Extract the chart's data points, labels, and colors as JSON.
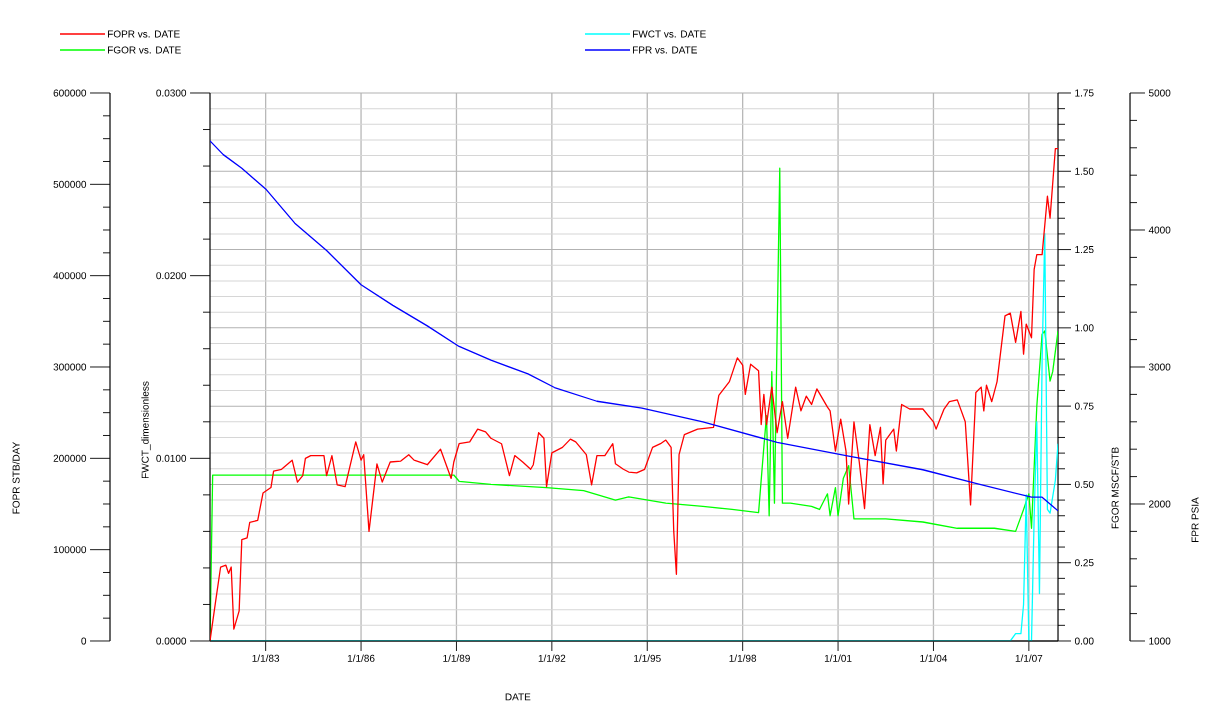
{
  "chart_data": [
    {
      "type": "line",
      "xlabel": "DATE",
      "ylabel": "FOPR  STB/DAY",
      "y2label": "FWCT_dimensionless",
      "y3label": "FGOR  MSCF/STB",
      "xlim": [
        "1981-04",
        "2007-12"
      ],
      "xticks": [
        {
          "value": "1983-01-01",
          "label": "1/1/83"
        },
        {
          "value": "1986-01-01",
          "label": "1/1/86"
        },
        {
          "value": "1989-01-01",
          "label": "1/1/89"
        },
        {
          "value": "1992-01-01",
          "label": "1/1/92"
        },
        {
          "value": "1995-01-01",
          "label": "1/1/95"
        },
        {
          "value": "1998-01-01",
          "label": "1/1/98"
        },
        {
          "value": "2001-01-01",
          "label": "1/1/01"
        },
        {
          "value": "2004-01-01",
          "label": "1/1/04"
        },
        {
          "value": "2007-01-01",
          "label": "1/1/07"
        }
      ],
      "ylim": [
        0,
        600000
      ],
      "yticks": [
        0,
        100000,
        200000,
        300000,
        400000,
        500000,
        600000
      ],
      "y2lim": [
        0,
        0.03
      ],
      "y2ticks": [
        {
          "value": 0,
          "label": "0.0000"
        },
        {
          "value": 0.01,
          "label": "0.0100"
        },
        {
          "value": 0.02,
          "label": "0.0200"
        },
        {
          "value": 0.03,
          "label": "0.0300"
        }
      ],
      "y3lim": [
        0,
        1.75
      ],
      "y3ticks": [
        {
          "value": 0,
          "label": "0.00"
        },
        {
          "value": 0.25,
          "label": "0.25"
        },
        {
          "value": 0.5,
          "label": "0.50"
        },
        {
          "value": 0.75,
          "label": "0.75"
        },
        {
          "value": 1,
          "label": "1.00"
        },
        {
          "value": 1.25,
          "label": "1.25"
        },
        {
          "value": 1.5,
          "label": "1.50"
        },
        {
          "value": 1.75,
          "label": "1.75"
        }
      ],
      "grid": true,
      "legend": "top",
      "series": [
        {
          "name": "FOPR vs. DATE",
          "color": "#ff0000",
          "x": [
            "1981-04",
            "1981-06",
            "1981-08",
            "1981-10",
            "1981-11",
            "1981-12",
            "1982-01",
            "1982-03",
            "1982-04",
            "1982-06",
            "1982-07",
            "1982-10",
            "1982-12",
            "1983-03",
            "1983-04",
            "1983-07",
            "1983-11",
            "1984-01",
            "1984-03",
            "1984-04",
            "1984-06",
            "1984-11",
            "1984-12",
            "1985-02",
            "1985-04",
            "1985-07",
            "1985-11",
            "1986-01",
            "1986-02",
            "1986-04",
            "1986-07",
            "1986-09",
            "1986-12",
            "1987-04",
            "1987-07",
            "1987-09",
            "1988-02",
            "1988-07",
            "1988-11",
            "1988-12",
            "1989-02",
            "1989-06",
            "1989-09",
            "1989-12",
            "1990-02",
            "1990-06",
            "1990-09",
            "1990-11",
            "1991-02",
            "1991-05",
            "1991-06",
            "1991-08",
            "1991-10",
            "1991-11",
            "1992-01",
            "1992-05",
            "1992-08",
            "1992-10",
            "1993-02",
            "1993-04",
            "1993-06",
            "1993-09",
            "1993-12",
            "1994-01",
            "1994-04",
            "1994-06",
            "1994-09",
            "1994-12",
            "1995-03",
            "1995-06",
            "1995-08",
            "1995-10",
            "1995-11",
            "1995-12",
            "1996-01",
            "1996-03",
            "1996-08",
            "1997-02",
            "1997-04",
            "1997-08",
            "1997-11",
            "1998-01",
            "1998-02",
            "1998-04",
            "1998-07",
            "1998-08",
            "1998-09",
            "1998-10",
            "1998-12",
            "1999-02",
            "1999-04",
            "1999-06",
            "1999-09",
            "1999-11",
            "2000-01",
            "2000-03",
            "2000-05",
            "2000-09",
            "2000-10",
            "2000-12",
            "2001-02",
            "2001-04",
            "2001-05",
            "2001-07",
            "2001-09",
            "2001-11",
            "2002-01",
            "2002-03",
            "2002-05",
            "2002-06",
            "2002-07",
            "2002-10",
            "2002-11",
            "2003-01",
            "2003-04",
            "2003-09",
            "2004-01",
            "2004-02",
            "2004-05",
            "2004-07",
            "2004-10",
            "2005-01",
            "2005-03",
            "2005-05",
            "2005-07",
            "2005-08",
            "2005-09",
            "2005-11",
            "2006-01",
            "2006-04",
            "2006-06",
            "2006-08",
            "2006-10",
            "2006-11",
            "2006-12",
            "2007-02",
            "2007-03",
            "2007-04",
            "2007-06",
            "2007-08",
            "2007-09",
            "2007-11",
            "2007-12"
          ],
          "values": [
            0,
            41000,
            81000,
            83000,
            74000,
            81000,
            13000,
            33000,
            111000,
            113000,
            130000,
            132000,
            162000,
            168000,
            186000,
            188000,
            198000,
            174000,
            181000,
            200000,
            203000,
            203000,
            181000,
            203000,
            171000,
            169000,
            218000,
            198000,
            204000,
            120000,
            194000,
            174000,
            196000,
            197000,
            204000,
            198000,
            193000,
            210000,
            178000,
            196000,
            216000,
            218000,
            232000,
            229000,
            222000,
            216000,
            181000,
            203000,
            196000,
            188000,
            193000,
            228000,
            222000,
            169000,
            206000,
            212000,
            221000,
            218000,
            204000,
            171000,
            203000,
            203000,
            216000,
            194000,
            188000,
            185000,
            184000,
            188000,
            212000,
            216000,
            220000,
            212000,
            120000,
            73000,
            204000,
            226000,
            232000,
            234000,
            269000,
            284000,
            310000,
            302000,
            270000,
            303000,
            296000,
            237000,
            270000,
            237000,
            278000,
            228000,
            262000,
            222000,
            278000,
            252000,
            268000,
            259000,
            276000,
            256000,
            252000,
            208000,
            243000,
            208000,
            150000,
            240000,
            196000,
            145000,
            237000,
            203000,
            234000,
            172000,
            220000,
            232000,
            208000,
            259000,
            254000,
            254000,
            240000,
            232000,
            254000,
            262000,
            264000,
            240000,
            149000,
            272000,
            278000,
            252000,
            280000,
            262000,
            284000,
            356000,
            359000,
            327000,
            361000,
            314000,
            347000,
            332000,
            407000,
            423000,
            423000,
            487000,
            463000,
            539000,
            539000
          ]
        },
        {
          "name": "FWCT vs. DATE",
          "color": "#00ffff",
          "axis": "y2",
          "x": [
            "1981-04",
            "2006-06",
            "2006-08",
            "2006-10",
            "2006-11",
            "2006-12",
            "2007-01",
            "2007-02",
            "2007-03",
            "2007-04",
            "2007-05",
            "2007-06",
            "2007-07",
            "2007-08",
            "2007-09",
            "2007-11",
            "2007-12"
          ],
          "values": [
            0,
            0,
            0.0004,
            0.0004,
            0.002,
            0.008,
            0,
            0,
            0.0068,
            0.012,
            0.0026,
            0.0154,
            0.0223,
            0.0072,
            0.007,
            0.0088,
            0.0108
          ]
        },
        {
          "name": "FGOR vs. DATE",
          "color": "#00ff00",
          "axis": "y3",
          "x": [
            "1981-04",
            "1981-05",
            "1988-12",
            "1989-02",
            "1990-02",
            "1991-11",
            "1993-01",
            "1994-01",
            "1994-06",
            "1995-08",
            "1996-10",
            "1997-09",
            "1998-07",
            "1998-09",
            "1998-10",
            "1998-11",
            "1998-12",
            "1999-01",
            "1999-02",
            "1999-03",
            "1999-04",
            "1999-07",
            "2000-03",
            "2000-06",
            "2000-09",
            "2000-10",
            "2000-12",
            "2001-01",
            "2001-03",
            "2001-05",
            "2001-07",
            "2002-07",
            "2003-09",
            "2004-10",
            "2005-12",
            "2006-08",
            "2006-11",
            "2007-01",
            "2007-02",
            "2007-04",
            "2007-06",
            "2007-07",
            "2007-09",
            "2007-10",
            "2007-12"
          ],
          "values": [
            0,
            0.53,
            0.53,
            0.51,
            0.5,
            0.49,
            0.48,
            0.45,
            0.46,
            0.44,
            0.43,
            0.42,
            0.41,
            0.62,
            0.72,
            0.4,
            0.86,
            0.44,
            0.98,
            1.51,
            0.44,
            0.44,
            0.43,
            0.42,
            0.47,
            0.4,
            0.49,
            0.4,
            0.52,
            0.56,
            0.39,
            0.39,
            0.38,
            0.36,
            0.36,
            0.35,
            0.42,
            0.47,
            0.36,
            0.75,
            0.98,
            0.99,
            0.83,
            0.86,
            0.99
          ]
        }
      ]
    },
    {
      "type": "line",
      "ylabel": "FPR  PSIA",
      "xlim": [
        "1981-04",
        "2007-12"
      ],
      "ylim": [
        1000,
        5000
      ],
      "yticks": [
        1000,
        2000,
        3000,
        4000,
        5000
      ],
      "tick_labels": "y",
      "legend": "top",
      "series": [
        {
          "name": "FPR vs. DATE",
          "color": "#0000ff",
          "x": [
            "1981-04",
            "1981-09",
            "1982-04",
            "1983-01",
            "1983-12",
            "1984-12",
            "1986-01",
            "1987-01",
            "1988-02",
            "1989-02",
            "1990-02",
            "1991-04",
            "1992-02",
            "1993-06",
            "1994-11",
            "1996-10",
            "1999-02",
            "2001-05",
            "2003-09",
            "2005-05",
            "2007-02",
            "2007-06",
            "2007-12"
          ],
          "values": [
            4650,
            4550,
            4450,
            4300,
            4050,
            3850,
            3600,
            3450,
            3300,
            3150,
            3050,
            2950,
            2850,
            2750,
            2700,
            2600,
            2450,
            2350,
            2250,
            2150,
            2050,
            2050,
            1950
          ]
        }
      ]
    }
  ]
}
